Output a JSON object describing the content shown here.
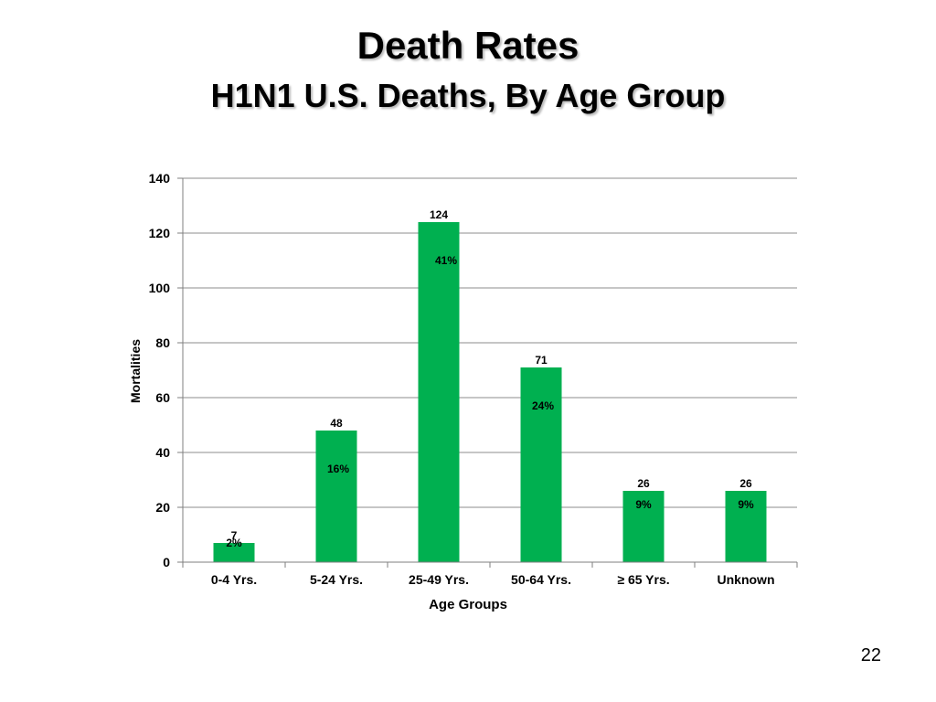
{
  "slide": {
    "title": "Death Rates",
    "subtitle": "H1N1 U.S. Deaths, By Age Group",
    "page_number": "22"
  },
  "colors": {
    "bar": "#00b050",
    "gridline": "#8c8c8c",
    "axis": "#7f7f7f",
    "text": "#000000"
  },
  "chart_data": {
    "type": "bar",
    "categories": [
      "0-4 Yrs.",
      "5-24 Yrs.",
      "25-49 Yrs.",
      "50-64 Yrs.",
      "≥ 65 Yrs.",
      "Unknown"
    ],
    "values": [
      7,
      48,
      124,
      71,
      26,
      26
    ],
    "value_labels": [
      "7",
      "48",
      "124",
      "71",
      "26",
      "26"
    ],
    "percent_labels": [
      "2%",
      "16%",
      "41%",
      "24%",
      "9%",
      "9%"
    ],
    "title": "",
    "xlabel": "Age Groups",
    "ylabel": "Mortalities",
    "ylim": [
      0,
      140
    ],
    "yticks": [
      0,
      20,
      40,
      60,
      80,
      100,
      120,
      140
    ],
    "grid": true,
    "legend": "none"
  }
}
